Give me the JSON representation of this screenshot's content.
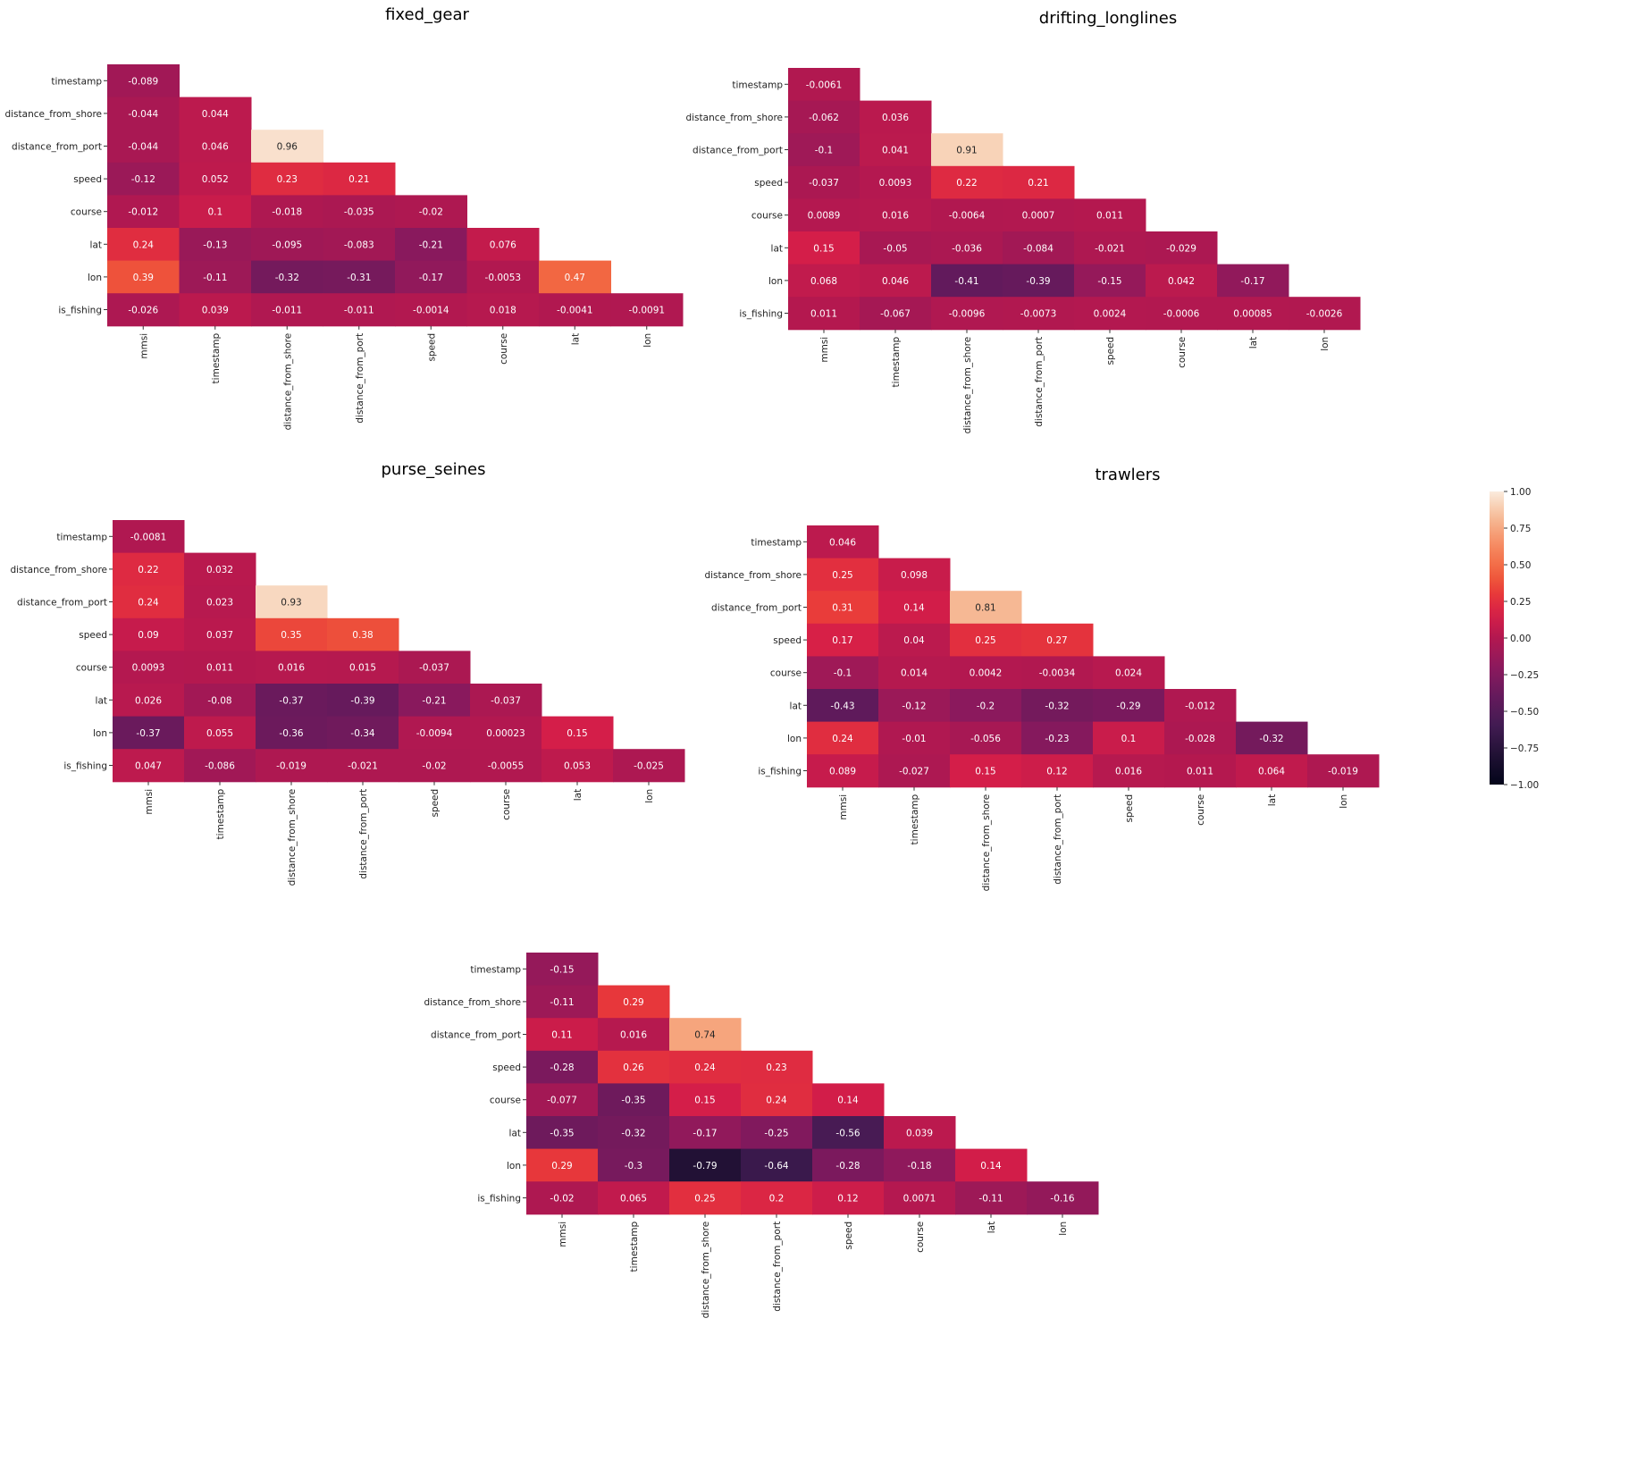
{
  "chart_data": {
    "type": "heatmap",
    "variables": [
      "mmsi",
      "timestamp",
      "distance_from_shore",
      "distance_from_port",
      "speed",
      "course",
      "lat",
      "lon",
      "is_fishing"
    ],
    "row_labels": [
      "timestamp",
      "distance_from_shore",
      "distance_from_port",
      "speed",
      "course",
      "lat",
      "lon",
      "is_fishing"
    ],
    "col_labels": [
      "mmsi",
      "timestamp",
      "distance_from_shore",
      "distance_from_port",
      "speed",
      "course",
      "lat",
      "lon"
    ],
    "lower_triangle_only": true,
    "panels": [
      {
        "title": "fixed_gear",
        "values": [
          [
            "-0.089"
          ],
          [
            "-0.044",
            "0.044"
          ],
          [
            "-0.044",
            "0.046",
            "0.96"
          ],
          [
            "-0.12",
            "0.052",
            "0.23",
            "0.21"
          ],
          [
            "-0.012",
            "0.1",
            "-0.018",
            "-0.035",
            "-0.02"
          ],
          [
            "0.24",
            "-0.13",
            "-0.095",
            "-0.083",
            "-0.21",
            "0.076"
          ],
          [
            "0.39",
            "-0.11",
            "-0.32",
            "-0.31",
            "-0.17",
            "-0.0053",
            "0.47"
          ],
          [
            "-0.026",
            "0.039",
            "-0.011",
            "-0.011",
            "-0.0014",
            "0.018",
            "-0.0041",
            "-0.0091"
          ]
        ]
      },
      {
        "title": "drifting_longlines",
        "values": [
          [
            "-0.0061"
          ],
          [
            "-0.062",
            "0.036"
          ],
          [
            "-0.1",
            "0.041",
            "0.91"
          ],
          [
            "-0.037",
            "0.0093",
            "0.22",
            "0.21"
          ],
          [
            "0.0089",
            "0.016",
            "-0.0064",
            "0.0007",
            "0.011"
          ],
          [
            "0.15",
            "-0.05",
            "-0.036",
            "-0.084",
            "-0.021",
            "-0.029"
          ],
          [
            "0.068",
            "0.046",
            "-0.41",
            "-0.39",
            "-0.15",
            "0.042",
            "-0.17"
          ],
          [
            "0.011",
            "-0.067",
            "-0.0096",
            "-0.0073",
            "0.0024",
            "-0.0006",
            "0.00085",
            "-0.0026"
          ]
        ]
      },
      {
        "title": "purse_seines",
        "values": [
          [
            "-0.0081"
          ],
          [
            "0.22",
            "0.032"
          ],
          [
            "0.24",
            "0.023",
            "0.93"
          ],
          [
            "0.09",
            "0.037",
            "0.35",
            "0.38"
          ],
          [
            "0.0093",
            "0.011",
            "0.016",
            "0.015",
            "-0.037"
          ],
          [
            "0.026",
            "-0.08",
            "-0.37",
            "-0.39",
            "-0.21",
            "-0.037"
          ],
          [
            "-0.37",
            "0.055",
            "-0.36",
            "-0.34",
            "-0.0094",
            "0.00023",
            "0.15"
          ],
          [
            "0.047",
            "-0.086",
            "-0.019",
            "-0.021",
            "-0.02",
            "-0.0055",
            "0.053",
            "-0.025"
          ]
        ]
      },
      {
        "title": "trawlers",
        "values": [
          [
            "0.046"
          ],
          [
            "0.25",
            "0.098"
          ],
          [
            "0.31",
            "0.14",
            "0.81"
          ],
          [
            "0.17",
            "0.04",
            "0.25",
            "0.27"
          ],
          [
            "-0.1",
            "0.014",
            "0.0042",
            "-0.0034",
            "0.024"
          ],
          [
            "-0.43",
            "-0.12",
            "-0.2",
            "-0.32",
            "-0.29",
            "-0.012"
          ],
          [
            "0.24",
            "-0.01",
            "-0.056",
            "-0.23",
            "0.1",
            "-0.028",
            "-0.32"
          ],
          [
            "0.089",
            "-0.027",
            "0.15",
            "0.12",
            "0.016",
            "0.011",
            "0.064",
            "-0.019"
          ]
        ]
      },
      {
        "title": "",
        "values": [
          [
            "-0.15"
          ],
          [
            "-0.11",
            "0.29"
          ],
          [
            "0.11",
            "0.016",
            "0.74"
          ],
          [
            "-0.28",
            "0.26",
            "0.24",
            "0.23"
          ],
          [
            "-0.077",
            "-0.35",
            "0.15",
            "0.24",
            "0.14"
          ],
          [
            "-0.35",
            "-0.32",
            "-0.17",
            "-0.25",
            "-0.56",
            "0.039"
          ],
          [
            "0.29",
            "-0.3",
            "-0.79",
            "-0.64",
            "-0.28",
            "-0.18",
            "0.14"
          ],
          [
            "-0.02",
            "0.065",
            "0.25",
            "0.2",
            "0.12",
            "0.0071",
            "-0.11",
            "-0.16"
          ]
        ]
      }
    ],
    "colorbar": {
      "range": [
        -1,
        1
      ],
      "ticks": [
        "1.00",
        "0.75",
        "0.50",
        "0.25",
        "0.00",
        "−0.25",
        "−0.50",
        "−0.75",
        "−1.00"
      ],
      "colormap": "rocket"
    }
  }
}
